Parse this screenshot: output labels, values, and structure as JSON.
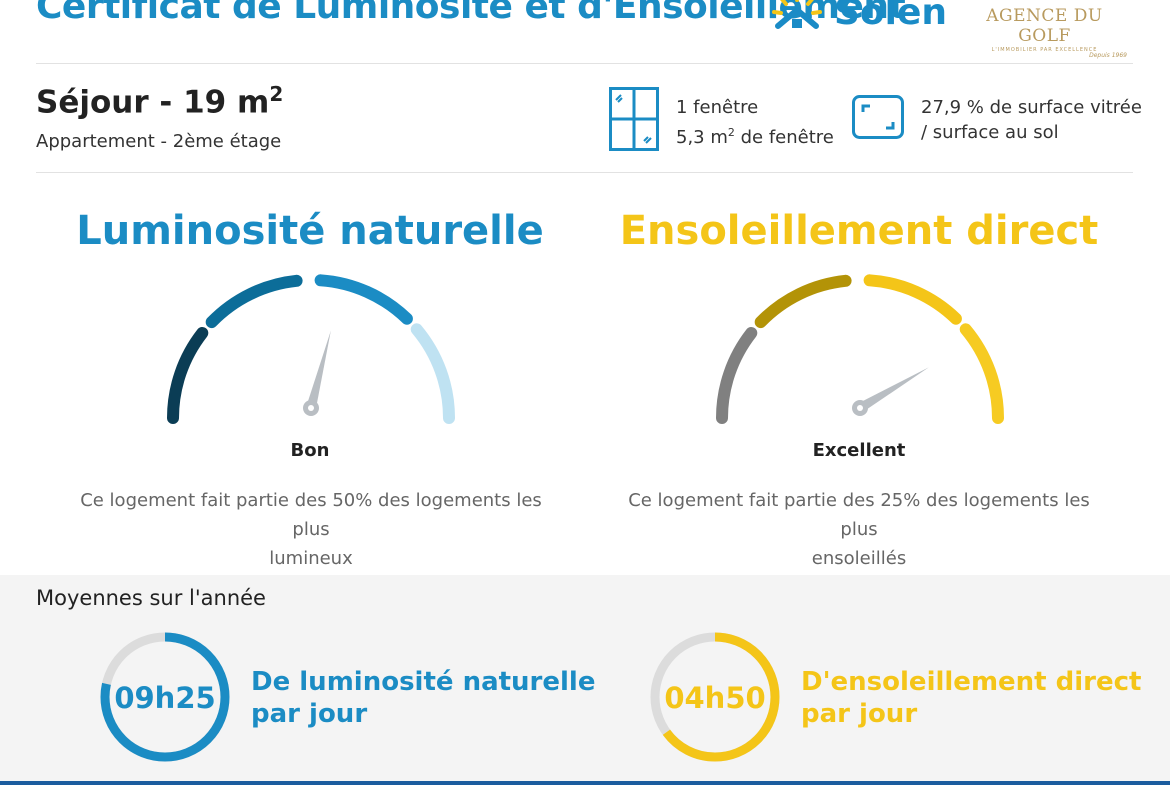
{
  "header": {
    "title": "Certificat de Luminosité et d'Ensoleillement",
    "solen_logo": "Solen",
    "agence_name": "AGENCE DU GOLF",
    "agence_tagline": "L'IMMOBILIER PAR EXCELLENCE",
    "agence_since": "Depuis 1969"
  },
  "room": {
    "name": "Séjour - 19 m",
    "name_sup": "2",
    "subtitle": "Appartement - 2ème étage",
    "window_count": "1 fenêtre",
    "window_area_prefix": "5,3 m",
    "window_area_sup": "2",
    "window_area_suffix": " de fenêtre",
    "glazed_ratio_line1": "27,9 % de surface vitrée",
    "glazed_ratio_line2": "/ surface au sol"
  },
  "luminosite": {
    "title": "Luminosité naturelle",
    "level": "Bon",
    "gauge_value": 0.58,
    "desc_line1": "Ce logement fait partie des 50% des logements les plus",
    "desc_line2": "lumineux",
    "segment_colors": [
      "#0b3d55",
      "#0c6d99",
      "#1b8cc4",
      "#bfe2f2"
    ]
  },
  "ensoleillement": {
    "title": "Ensoleillement direct",
    "level": "Excellent",
    "gauge_value": 0.83,
    "desc_line1": "Ce logement fait partie des 25% des logements les plus",
    "desc_line2": "ensoleillés",
    "segment_colors": [
      "#808080",
      "#b39307",
      "#f4c518",
      "#f6cb22"
    ]
  },
  "moyennes": {
    "title": "Moyennes sur l'année",
    "lum_time": "09h25",
    "lum_label1": "De luminosité naturelle",
    "lum_label2": "par jour",
    "lum_fraction": 0.785,
    "sun_time": "04h50",
    "sun_label1": "D'ensoleillement direct",
    "sun_label2": "par jour",
    "sun_fraction": 0.65
  },
  "colors": {
    "blue": "#1b8cc4",
    "yellow": "#f4c518",
    "ring_track": "#dcdcdc",
    "needle": "#b9bec3"
  }
}
